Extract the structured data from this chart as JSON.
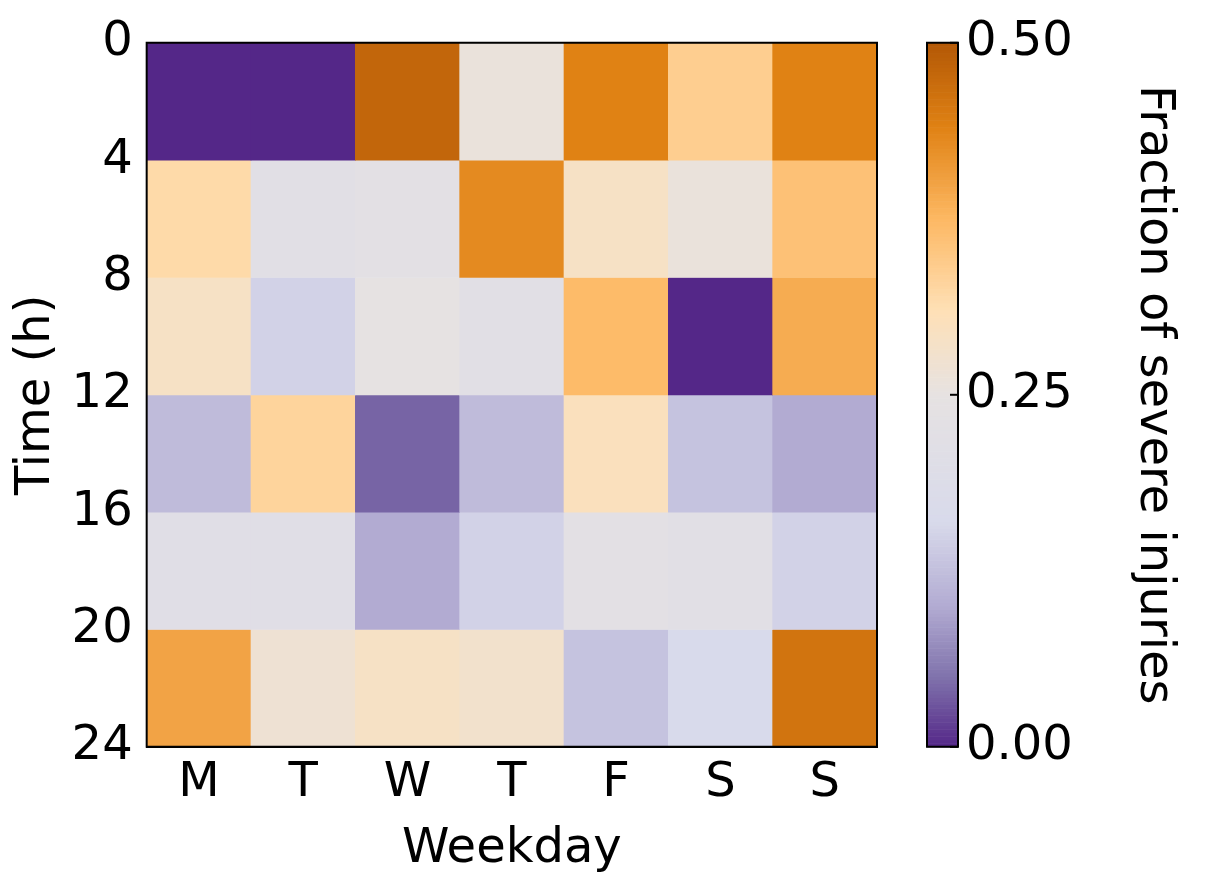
{
  "chart_data": {
    "type": "heatmap",
    "xlabel": "Weekday",
    "ylabel": "Time (h)",
    "clabel": "Fraction of severe injuries",
    "categories": [
      "M",
      "T",
      "W",
      "T",
      "F",
      "S",
      "S"
    ],
    "ylim": [
      24,
      0
    ],
    "yticks": [
      0,
      4,
      8,
      12,
      16,
      20,
      24
    ],
    "cells": [
      [
        0.0,
        0.0,
        0.48,
        0.26,
        0.44,
        0.34,
        0.44
      ],
      [
        0.32,
        0.22,
        0.23,
        0.43,
        0.29,
        0.26,
        0.36
      ],
      [
        0.29,
        0.15,
        0.25,
        0.22,
        0.37,
        0.0,
        0.39
      ],
      [
        0.12,
        0.33,
        0.04,
        0.12,
        0.3,
        0.13,
        0.1
      ],
      [
        0.21,
        0.21,
        0.1,
        0.15,
        0.23,
        0.22,
        0.15
      ],
      [
        0.4,
        0.27,
        0.29,
        0.28,
        0.13,
        0.16,
        0.46
      ]
    ],
    "clim": [
      0,
      0.5
    ],
    "cticks": [
      {
        "value": 0,
        "label": "0.00"
      },
      {
        "value": 0.25,
        "label": "0.25"
      },
      {
        "value": 0.5,
        "label": "0.50"
      }
    ],
    "grid": false
  }
}
